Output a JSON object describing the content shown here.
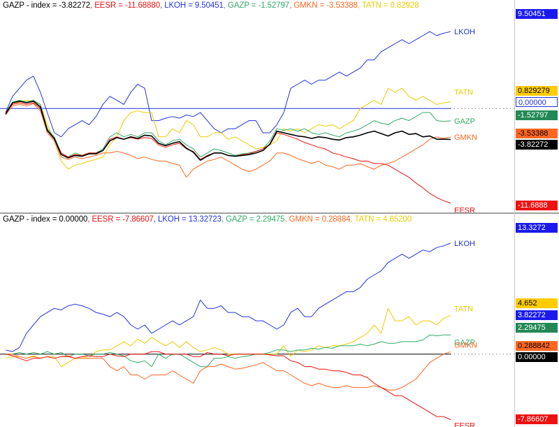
{
  "panels": [
    {
      "header": {
        "prefix": "GAZP - index = -3.82272",
        "items": [
          {
            "text": ", EESR = -11.68880",
            "color": "#ee1111"
          },
          {
            "text": ", LKOH = 9.50451",
            "color": "#2233dd"
          },
          {
            "text": ", GAZP = -1.52797",
            "color": "#33aa66"
          },
          {
            "text": ", GMKN = -3.53388",
            "color": "#ff6622"
          },
          {
            "text": ", TATN = 0.82928",
            "color": "#eecc00"
          }
        ]
      },
      "value_tags": [
        {
          "text": "9.50451",
          "bg": "#1a1aee",
          "fg": "#ffffff"
        },
        {
          "text": "0.829279",
          "bg": "#ffcc00",
          "fg": "#000000"
        },
        {
          "text": "0.00000",
          "bg": "#ffffff",
          "fg": "#2233dd",
          "border": "#2233dd"
        },
        {
          "text": "-1.52797",
          "bg": "#228855",
          "fg": "#ffffff"
        },
        {
          "text": "-3.53388",
          "bg": "#ff6622",
          "fg": "#000000"
        },
        {
          "text": "-3.82272",
          "bg": "#000000",
          "fg": "#ffffff"
        },
        {
          "text": "-11.6888",
          "bg": "#ee1111",
          "fg": "#ffffff"
        }
      ]
    },
    {
      "header": {
        "prefix": "GAZP - index = 0.00000",
        "items": [
          {
            "text": ", EESR = -7.86607",
            "color": "#ee1111"
          },
          {
            "text": ", LKOH = 13.32723",
            "color": "#2233dd"
          },
          {
            "text": ", GAZP = 2.29475",
            "color": "#33aa66"
          },
          {
            "text": ", GMKN = 0.28884",
            "color": "#ff6622"
          },
          {
            "text": ", TATN = 4.65200",
            "color": "#eecc00"
          }
        ]
      },
      "value_tags": [
        {
          "text": "13.3272",
          "bg": "#1a1aee",
          "fg": "#ffffff"
        },
        {
          "text": "4.652",
          "bg": "#ffcc00",
          "fg": "#000000"
        },
        {
          "text": "3.82272",
          "bg": "#1a1aee",
          "fg": "#ffffff"
        },
        {
          "text": "2.29475",
          "bg": "#228855",
          "fg": "#ffffff"
        },
        {
          "text": "0.288842",
          "bg": "#ff6622",
          "fg": "#000000"
        },
        {
          "text": "0.00000",
          "bg": "#000000",
          "fg": "#ffffff"
        },
        {
          "text": "-7.86607",
          "bg": "#ee1111",
          "fg": "#ffffff"
        }
      ]
    }
  ],
  "chart_data": [
    {
      "type": "line",
      "ylim": [
        -12.5,
        11.5
      ],
      "reference_line": 0,
      "series": [
        {
          "name": "LKOH",
          "color": "#2233dd",
          "values": [
            -0.5,
            1.5,
            2.5,
            3.5,
            4.0,
            2.0,
            -0.5,
            -3.0,
            -3.5,
            -2.5,
            -2.0,
            -1.5,
            -2.0,
            -1.0,
            0.5,
            1.5,
            1.0,
            0.5,
            2.0,
            3.0,
            2.5,
            -1.5,
            -1.5,
            -1.2,
            -1.0,
            -1.2,
            -0.8,
            -1.0,
            -0.5,
            -1.5,
            -2.5,
            -3.0,
            -2.5,
            -2.5,
            -2.0,
            -1.5,
            -1.5,
            -3.0,
            -3.0,
            -2.0,
            -0.5,
            2.5,
            3.0,
            3.5,
            3.0,
            3.5,
            3.5,
            4.0,
            4.5,
            4.0,
            4.5,
            5.0,
            6.0,
            6.0,
            7.0,
            7.5,
            8.0,
            8.5,
            8.0,
            8.5,
            9.0,
            9.5,
            9.0,
            9.3,
            9.5
          ]
        },
        {
          "name": "TATN",
          "color": "#eecc00",
          "values": [
            -0.5,
            0.5,
            0.8,
            1.0,
            0.9,
            0.5,
            -2.0,
            -4.0,
            -6.5,
            -7.5,
            -7.0,
            -6.8,
            -6.5,
            -6.3,
            -6.0,
            -4.5,
            -3.5,
            -1.5,
            -0.5,
            -0.3,
            -0.5,
            -0.5,
            -3.5,
            -3.5,
            -2.5,
            -3.0,
            -1.5,
            -2.0,
            -3.5,
            -3.5,
            -3.0,
            -3.0,
            -3.8,
            -3.5,
            -4.0,
            -4.5,
            -5.0,
            -4.8,
            -4.5,
            -4.0,
            -2.5,
            -2.8,
            -2.5,
            -3.0,
            -2.5,
            -2.0,
            -2.2,
            -2.0,
            -2.5,
            -2.0,
            -1.5,
            0.0,
            0.5,
            1.0,
            0.5,
            2.5,
            2.0,
            2.5,
            1.5,
            1.0,
            1.5,
            1.0,
            0.5,
            0.7,
            0.83
          ]
        },
        {
          "name": "GAZP",
          "color": "#33aa66",
          "values": [
            -0.5,
            0.8,
            1.0,
            0.8,
            1.0,
            0.5,
            -2.5,
            -3.5,
            -5.5,
            -6.0,
            -5.5,
            -5.8,
            -5.5,
            -5.5,
            -5.0,
            -3.5,
            -3.0,
            -3.5,
            -3.2,
            -3.5,
            -3.0,
            -3.0,
            -4.0,
            -4.5,
            -4.0,
            -3.8,
            -4.5,
            -5.0,
            -6.0,
            -5.5,
            -5.0,
            -5.2,
            -5.5,
            -5.8,
            -5.6,
            -5.5,
            -5.3,
            -5.0,
            -4.0,
            -2.5,
            -2.7,
            -2.5,
            -2.8,
            -2.5,
            -3.0,
            -3.2,
            -3.0,
            -3.3,
            -3.5,
            -3.0,
            -2.8,
            -2.5,
            -2.0,
            -1.5,
            -1.8,
            -2.0,
            -1.5,
            -1.2,
            -1.5,
            -1.0,
            -0.5,
            -0.5,
            -1.5,
            -1.6,
            -1.53
          ]
        },
        {
          "name": "GMKN",
          "color": "#ff6622",
          "values": [
            -0.8,
            0.3,
            0.5,
            0.3,
            0.6,
            -0.3,
            -3.0,
            -4.0,
            -6.0,
            -6.3,
            -6.0,
            -6.2,
            -6.0,
            -5.8,
            -5.5,
            -5.5,
            -5.3,
            -5.5,
            -5.8,
            -6.2,
            -6.0,
            -6.3,
            -6.5,
            -6.5,
            -6.8,
            -7.0,
            -8.5,
            -7.5,
            -7.0,
            -6.5,
            -6.3,
            -6.0,
            -6.5,
            -7.0,
            -7.5,
            -7.8,
            -7.5,
            -7.0,
            -6.5,
            -5.5,
            -5.5,
            -5.8,
            -6.2,
            -6.5,
            -6.8,
            -6.5,
            -7.0,
            -7.2,
            -7.5,
            -7.0,
            -7.0,
            -6.8,
            -7.2,
            -7.5,
            -7.0,
            -6.8,
            -6.5,
            -6.0,
            -5.5,
            -5.0,
            -4.5,
            -3.8,
            -3.5,
            -3.7,
            -3.53
          ]
        },
        {
          "name": "EESR",
          "color": "#ee1111",
          "values": [
            -0.5,
            0.5,
            0.7,
            0.5,
            0.7,
            0.0,
            -2.8,
            -3.8,
            -5.5,
            -6.0,
            -5.7,
            -5.8,
            -5.5,
            -5.5,
            -5.2,
            -3.8,
            -3.5,
            -3.8,
            -3.6,
            -3.8,
            -3.6,
            -3.7,
            -4.5,
            -4.8,
            -4.5,
            -4.3,
            -5.0,
            -5.3,
            -6.3,
            -5.8,
            -5.5,
            -5.5,
            -5.8,
            -5.9,
            -5.7,
            -5.6,
            -5.3,
            -5.0,
            -4.5,
            -3.0,
            -3.2,
            -3.5,
            -3.8,
            -4.2,
            -4.5,
            -4.8,
            -5.0,
            -5.5,
            -5.7,
            -6.0,
            -6.2,
            -6.5,
            -6.5,
            -6.8,
            -6.8,
            -7.0,
            -7.5,
            -8.0,
            -8.5,
            -9.2,
            -9.8,
            -10.5,
            -11.0,
            -11.4,
            -11.69
          ]
        },
        {
          "name": "index",
          "color": "#000000",
          "values": [
            -0.7,
            0.7,
            0.9,
            0.7,
            0.9,
            0.2,
            -2.7,
            -3.7,
            -5.7,
            -6.1,
            -5.8,
            -5.9,
            -5.6,
            -5.6,
            -5.2,
            -4.0,
            -3.6,
            -3.8,
            -3.5,
            -3.7,
            -3.3,
            -3.4,
            -4.3,
            -4.6,
            -4.3,
            -4.1,
            -4.9,
            -5.4,
            -6.4,
            -5.9,
            -5.5,
            -5.5,
            -5.8,
            -5.9,
            -5.8,
            -5.7,
            -5.5,
            -5.2,
            -4.4,
            -2.8,
            -3.0,
            -3.2,
            -3.4,
            -3.5,
            -3.7,
            -3.5,
            -3.6,
            -3.8,
            -3.9,
            -3.6,
            -3.5,
            -3.3,
            -3.0,
            -2.8,
            -3.1,
            -3.4,
            -3.0,
            -2.8,
            -3.2,
            -3.1,
            -3.5,
            -3.4,
            -3.8,
            -3.8,
            -3.82
          ]
        }
      ]
    },
    {
      "type": "line",
      "ylim": [
        -8.5,
        15.0
      ],
      "reference_line": 0,
      "series": [
        {
          "name": "LKOH",
          "color": "#2233dd",
          "values": [
            0.5,
            0.3,
            0.8,
            2.5,
            3.5,
            4.5,
            5.0,
            5.5,
            5.3,
            5.8,
            6.0,
            5.8,
            5.5,
            5.0,
            4.8,
            4.5,
            5.0,
            4.5,
            3.5,
            3.0,
            3.5,
            2.5,
            3.0,
            3.5,
            4.0,
            3.5,
            4.0,
            4.5,
            6.5,
            5.5,
            5.5,
            5.8,
            5.0,
            5.0,
            4.5,
            4.5,
            4.0,
            4.0,
            3.5,
            3.0,
            3.5,
            5.0,
            5.5,
            4.5,
            4.5,
            5.5,
            6.0,
            6.5,
            7.0,
            7.5,
            7.5,
            8.0,
            9.0,
            9.5,
            10.0,
            11.0,
            11.5,
            12.0,
            11.5,
            12.0,
            12.5,
            12.3,
            12.8,
            13.0,
            13.33
          ]
        },
        {
          "name": "TATN",
          "color": "#eecc00",
          "values": [
            -0.5,
            -0.3,
            -0.3,
            -0.5,
            -0.2,
            -0.5,
            -0.3,
            -0.3,
            -1.5,
            -1.0,
            -0.5,
            -0.3,
            -0.5,
            0.3,
            0.5,
            0.5,
            1.0,
            1.5,
            1.0,
            1.8,
            1.3,
            2.0,
            1.5,
            1.0,
            1.5,
            0.8,
            1.5,
            0.8,
            0.3,
            0.5,
            0.8,
            0.5,
            0.0,
            0.0,
            0.0,
            0.0,
            0.0,
            0.0,
            0.0,
            0.0,
            1.0,
            -0.3,
            0.5,
            0.3,
            0.5,
            1.0,
            0.8,
            1.0,
            1.0,
            1.2,
            1.5,
            2.0,
            2.5,
            3.5,
            2.5,
            5.5,
            4.0,
            4.0,
            4.5,
            3.5,
            4.0,
            4.0,
            3.5,
            4.3,
            4.65
          ]
        },
        {
          "name": "GAZP",
          "color": "#33aa66",
          "values": [
            0.0,
            0.0,
            0.2,
            0.0,
            0.2,
            0.0,
            0.3,
            0.0,
            0.2,
            -0.3,
            0.0,
            0.0,
            -0.2,
            0.0,
            0.0,
            0.2,
            0.0,
            -0.2,
            -0.8,
            -1.0,
            -0.8,
            -1.5,
            0.0,
            -0.5,
            0.0,
            0.0,
            -0.5,
            -1.0,
            -1.5,
            -1.5,
            -0.5,
            -0.5,
            -0.3,
            -0.5,
            -0.3,
            -0.2,
            0.0,
            0.0,
            0.2,
            0.5,
            0.5,
            0.3,
            0.5,
            0.5,
            0.7,
            0.6,
            0.8,
            0.7,
            1.0,
            1.0,
            1.0,
            1.2,
            1.0,
            1.2,
            1.5,
            1.3,
            1.3,
            1.5,
            1.5,
            1.5,
            1.7,
            2.3,
            2.2,
            2.3,
            2.29
          ]
        },
        {
          "name": "GMKN",
          "color": "#ff6622",
          "values": [
            0.0,
            0.0,
            -0.3,
            -0.5,
            -0.3,
            -0.5,
            -0.3,
            -0.5,
            -0.3,
            -0.2,
            -0.5,
            -0.5,
            -0.5,
            -0.5,
            -0.5,
            -1.5,
            -2.0,
            -1.5,
            -2.5,
            -2.5,
            -3.0,
            -2.5,
            -2.5,
            -2.5,
            -2.0,
            -2.5,
            -3.0,
            -3.5,
            -2.0,
            -1.5,
            -1.5,
            -1.2,
            -1.5,
            -1.8,
            -1.7,
            -1.5,
            -1.3,
            -1.0,
            -1.5,
            -2.0,
            -2.0,
            -2.5,
            -3.0,
            -3.5,
            -3.8,
            -3.5,
            -3.8,
            -4.0,
            -4.0,
            -3.8,
            -4.0,
            -4.0,
            -4.0,
            -3.8,
            -4.0,
            -4.3,
            -4.3,
            -4.0,
            -3.5,
            -3.0,
            -2.0,
            -1.0,
            -0.5,
            0.0,
            0.29
          ]
        },
        {
          "name": "EESR",
          "color": "#ee1111",
          "values": [
            0.0,
            -0.2,
            -0.5,
            -0.8,
            -0.5,
            -0.5,
            -0.3,
            -0.5,
            -0.3,
            -0.3,
            -0.5,
            -0.3,
            -0.2,
            -0.3,
            -0.3,
            0.0,
            -0.2,
            -0.3,
            0.0,
            0.0,
            0.0,
            0.3,
            0.3,
            0.0,
            0.0,
            0.0,
            0.0,
            -0.3,
            -0.3,
            0.2,
            0.0,
            0.0,
            -0.2,
            0.0,
            0.0,
            0.0,
            0.0,
            0.0,
            -0.1,
            -0.2,
            -0.2,
            -0.8,
            -1.0,
            -1.5,
            -1.5,
            -1.8,
            -1.8,
            -2.0,
            -2.0,
            -2.2,
            -2.5,
            -2.5,
            -2.8,
            -3.5,
            -4.0,
            -4.5,
            -5.0,
            -5.0,
            -5.5,
            -6.0,
            -6.5,
            -7.0,
            -7.5,
            -7.5,
            -7.87
          ]
        }
      ]
    }
  ],
  "end_labels": [
    "LKOH",
    "TATN",
    "GAZP",
    "GMKN",
    "EESR"
  ]
}
